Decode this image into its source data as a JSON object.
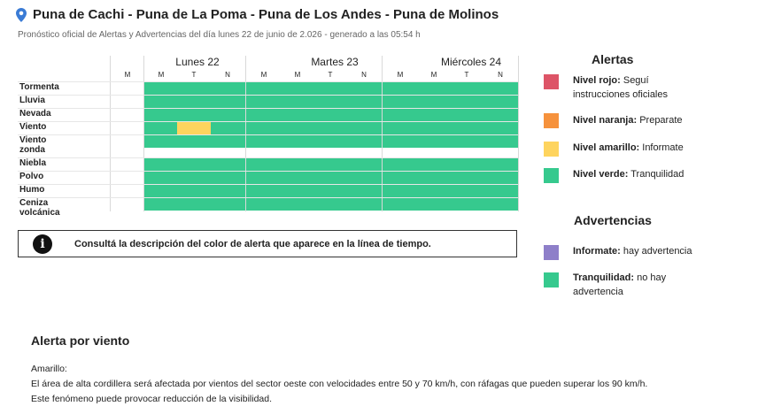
{
  "header": {
    "title": "Puna de Cachi - Puna de La Poma - Puna de Los Andes - Puna de Molinos",
    "subtitle": "Pronóstico oficial de Alertas y Advertencias del día lunes 22 de junio de 2.026 - generado a las 05:54 h"
  },
  "timeline": {
    "days": [
      "Lunes 22",
      "Martes 23",
      "Miércoles 24"
    ],
    "slots": [
      "M",
      "M",
      "T",
      "N",
      "M",
      "M",
      "T",
      "N",
      "M",
      "M",
      "T",
      "N"
    ],
    "rows_group1": [
      "Tormenta",
      "Lluvia",
      "Nevada",
      "Viento",
      "Viento zonda"
    ],
    "rows_group2": [
      "Niebla",
      "Polvo",
      "Humo",
      "Ceniza volcánica"
    ],
    "wind_alert_slot": "T",
    "colors": {
      "green": "#36c98e",
      "yellow": "#fed45e",
      "red": "#dd5467",
      "orange": "#f6923c",
      "violet": "#8e7fc9"
    }
  },
  "info": {
    "icon": "info-icon",
    "text": "Consultá la descripción del color de alerta que aparece en la línea de tiempo."
  },
  "alertas": {
    "heading": "Alertas",
    "items": [
      {
        "name": "Nivel rojo:",
        "desc": " Seguí instrucciones oficiales",
        "color": "#dd5467"
      },
      {
        "name": "Nivel naranja:",
        "desc": " Preparate",
        "color": "#f6923c"
      },
      {
        "name": "Nivel amarillo:",
        "desc": " Informate",
        "color": "#fed45e"
      },
      {
        "name": "Nivel verde:",
        "desc": " Tranquilidad",
        "color": "#36c98e"
      }
    ]
  },
  "advertencias": {
    "heading": "Advertencias",
    "items": [
      {
        "name": "Informate:",
        "desc": " hay advertencia",
        "color": "#8e7fc9"
      },
      {
        "name": "Tranquilidad:",
        "desc": " no hay advertencia",
        "color": "#36c98e"
      }
    ]
  },
  "description": {
    "title": "Alerta por viento",
    "level": "Amarillo:",
    "line1": "El área de alta cordillera será afectada por vientos del sector oeste con velocidades entre 50 y 70 km/h, con ráfagas que pueden superar los 90 km/h.",
    "line2": "Este fenómeno puede provocar reducción de la visibilidad."
  }
}
